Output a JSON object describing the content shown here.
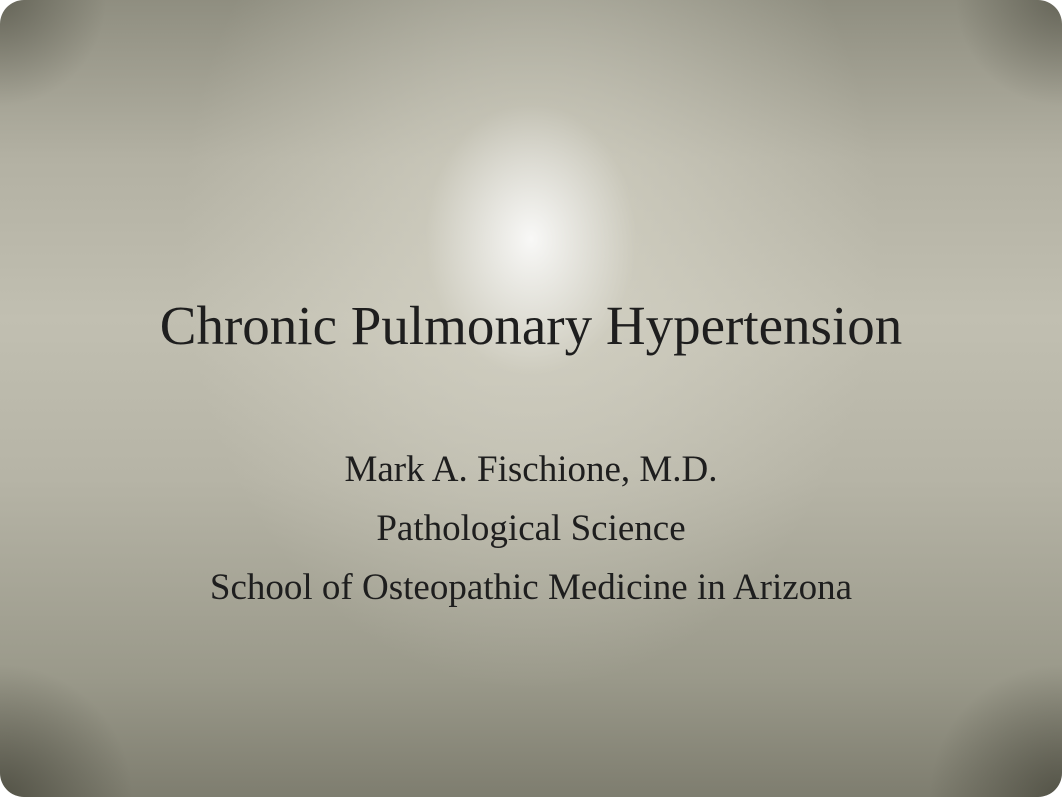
{
  "slide": {
    "title": "Chronic Pulmonary Hypertension",
    "author": "Mark A. Fischione, M.D.",
    "department": "Pathological Science",
    "school": "School of Osteopathic Medicine in Arizona",
    "background_colors": {
      "highlight": "#f5f3e8",
      "mid": "#b3b1a3",
      "edge": "#7e7d6f"
    },
    "text_color": "#1e1e1e",
    "title_fontsize": 55,
    "subtitle_fontsize": 37
  }
}
